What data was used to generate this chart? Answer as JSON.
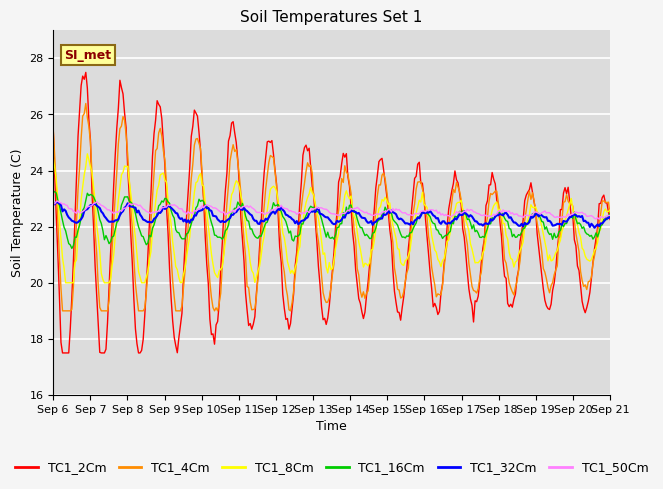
{
  "title": "Soil Temperatures Set 1",
  "xlabel": "Time",
  "ylabel": "Soil Temperature (C)",
  "ylim": [
    16,
    29
  ],
  "yticks": [
    16,
    18,
    20,
    22,
    24,
    26,
    28
  ],
  "x_tick_labels": [
    "Sep 6",
    "Sep 7",
    "Sep 8",
    "Sep 9",
    "Sep 10",
    "Sep 11",
    "Sep 12",
    "Sep 13",
    "Sep 14",
    "Sep 15",
    "Sep 16",
    "Sep 17",
    "Sep 18",
    "Sep 19",
    "Sep 20",
    "Sep 21"
  ],
  "series_labels": [
    "TC1_2Cm",
    "TC1_4Cm",
    "TC1_8Cm",
    "TC1_16Cm",
    "TC1_32Cm",
    "TC1_50Cm"
  ],
  "series_colors": [
    "#FF0000",
    "#FF8C00",
    "#FFFF00",
    "#00CC00",
    "#0000FF",
    "#FF80FF"
  ],
  "series_linewidths": [
    1.0,
    1.0,
    1.0,
    1.0,
    1.5,
    1.0
  ],
  "annotation_text": "SI_met",
  "plot_bg_color": "#DCDCDC",
  "fig_bg_color": "#F5F5F5",
  "grid_color": "#FFFFFF",
  "base_temp": 22.3,
  "title_fontsize": 11,
  "label_fontsize": 9,
  "tick_fontsize": 8,
  "legend_fontsize": 9
}
